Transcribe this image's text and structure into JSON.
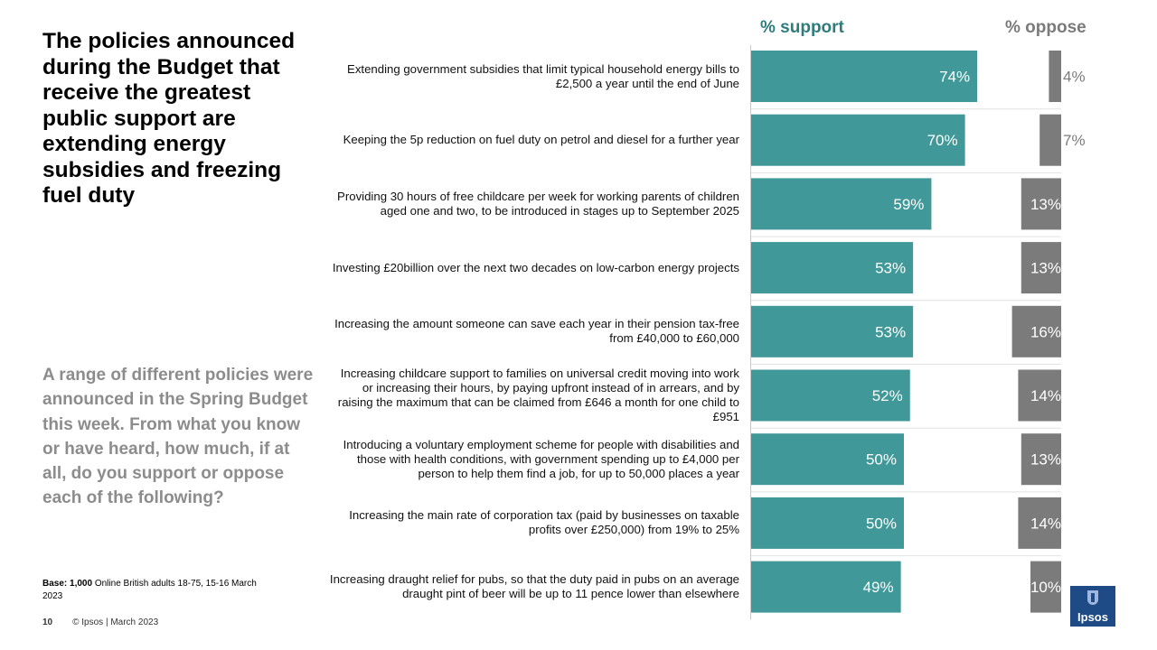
{
  "headline": "The policies announced during the Budget that receive the greatest public support are extending energy subsidies and freezing fuel duty",
  "question": "A range of different policies were announced in the Spring Budget this week. From what you know or have heard, how much, if at all, do you support or oppose each of the following?",
  "base": {
    "label": "Base:",
    "value": "1,000",
    "text": "Online British adults 18-75, 15-16 March 2023"
  },
  "footer": {
    "page": "10",
    "copyright": "© Ipsos | March 2023"
  },
  "logo_text": "Ipsos",
  "colors": {
    "support": "#409898",
    "oppose": "#7b7b7b",
    "support_header": "#2e7c7c",
    "oppose_header": "#7b7b7b",
    "logo": "#1e4a86"
  },
  "chart_data": {
    "type": "bar",
    "orientation": "horizontal",
    "headers": {
      "support": "% support",
      "oppose": "% oppose"
    },
    "categories": [
      "Extending government subsidies that limit typical household energy bills to £2,500 a year until the end of June",
      "Keeping the 5p reduction on fuel duty on petrol and diesel for a further year",
      "Providing 30 hours of free childcare per week for working parents of children aged one and two, to be introduced in stages up to September 2025",
      "Investing £20billion over the next two decades on low-carbon energy projects",
      "Increasing the amount someone can save each year in their pension tax-free from £40,000 to £60,000",
      "Increasing childcare support to families on universal credit moving into work or increasing their hours, by paying upfront instead of in arrears, and by raising the maximum that can be claimed from £646 a month for one child to £951",
      "Introducing a voluntary employment scheme for people with disabilities and those with health conditions, with government spending up to £4,000 per person to help them find a job, for up to 50,000 places a year",
      "Increasing the main rate of corporation tax (paid by businesses on taxable profits over £250,000) from 19% to 25%",
      "Increasing draught relief for pubs, so that the duty paid in pubs on an average draught pint of beer will be up to 11 pence lower than elsewhere"
    ],
    "series": [
      {
        "name": "% support",
        "values": [
          74,
          70,
          59,
          53,
          53,
          52,
          50,
          50,
          49
        ],
        "labels": [
          "74%",
          "70%",
          "59%",
          "53%",
          "53%",
          "52%",
          "50%",
          "50%",
          "49%"
        ]
      },
      {
        "name": "% oppose",
        "values": [
          4,
          7,
          13,
          13,
          16,
          14,
          13,
          14,
          10
        ],
        "labels": [
          "4%",
          "7%",
          "13%",
          "13%",
          "16%",
          "14%",
          "13%",
          "14%",
          "10%"
        ]
      }
    ],
    "xlim": [
      0,
      100
    ]
  }
}
